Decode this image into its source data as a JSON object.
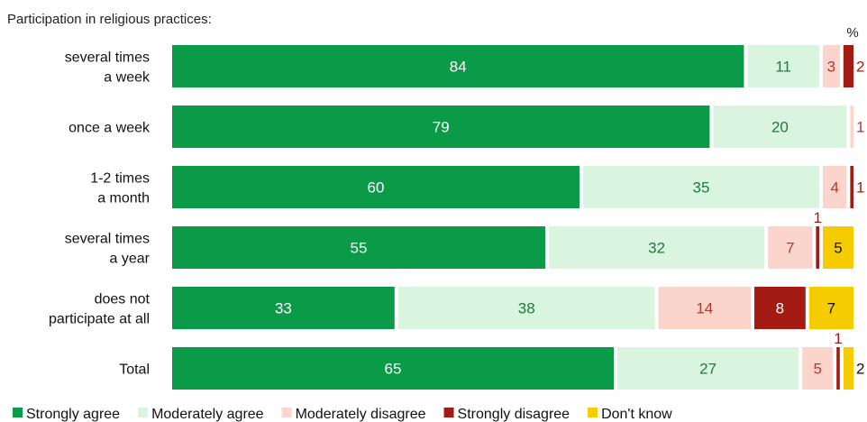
{
  "chart_data": {
    "type": "bar",
    "orientation": "horizontal",
    "stacked": true,
    "title": "Participation in religious practices:",
    "unit": "%",
    "categories": [
      [
        "several times",
        "a week"
      ],
      [
        "once a week"
      ],
      [
        "1-2 times",
        "a month"
      ],
      [
        "several times",
        "a year"
      ],
      [
        "does not",
        "participate at all"
      ],
      [
        "Total"
      ]
    ],
    "series": [
      {
        "name": "Strongly agree",
        "color": "#0a9a48",
        "text_color": "#ffffff",
        "values": [
          84,
          79,
          60,
          55,
          33,
          65
        ]
      },
      {
        "name": "Moderately agree",
        "color": "#d9f5df",
        "text_color": "#1f7a3c",
        "values": [
          11,
          20,
          35,
          32,
          38,
          27
        ]
      },
      {
        "name": "Moderately disagree",
        "color": "#fbd5cc",
        "text_color": "#b03a2e",
        "values": [
          3,
          1,
          4,
          7,
          14,
          5
        ]
      },
      {
        "name": "Strongly disagree",
        "color": "#a31b12",
        "text_color": "#ffffff",
        "outside_text_color": "#a31b12",
        "values": [
          2,
          0,
          1,
          1,
          8,
          1
        ]
      },
      {
        "name": "Don't know",
        "color": "#f5cc00",
        "text_color": "#111111",
        "values": [
          0,
          0,
          0,
          5,
          7,
          2
        ]
      }
    ],
    "xlim": [
      0,
      100
    ],
    "grid": false,
    "legend": "bottom"
  }
}
